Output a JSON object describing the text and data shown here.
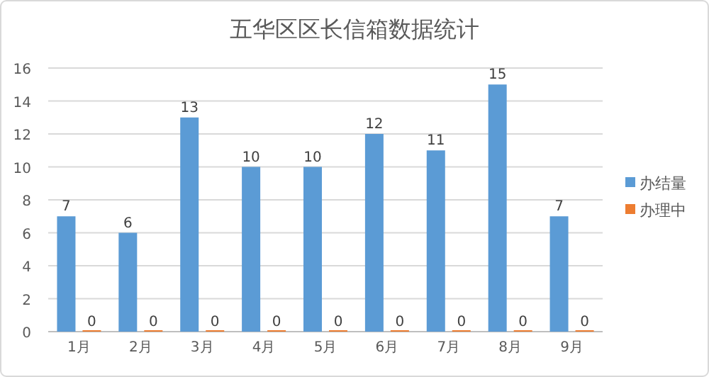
{
  "chart_data": {
    "type": "bar",
    "title": "五华区区长信箱数据统计",
    "categories": [
      "1月",
      "2月",
      "3月",
      "4月",
      "5月",
      "6月",
      "7月",
      "8月",
      "9月"
    ],
    "series": [
      {
        "name": "办结量",
        "color": "#5b9bd5",
        "values": [
          7,
          6,
          13,
          10,
          10,
          12,
          11,
          15,
          7
        ]
      },
      {
        "name": "办理中",
        "color": "#ed7d31",
        "values": [
          0,
          0,
          0,
          0,
          0,
          0,
          0,
          0,
          0
        ]
      }
    ],
    "ylim": [
      0,
      16
    ],
    "yticks": [
      0,
      2,
      4,
      6,
      8,
      10,
      12,
      14,
      16
    ],
    "grid": "y",
    "legend": "right",
    "data_labels": true
  }
}
